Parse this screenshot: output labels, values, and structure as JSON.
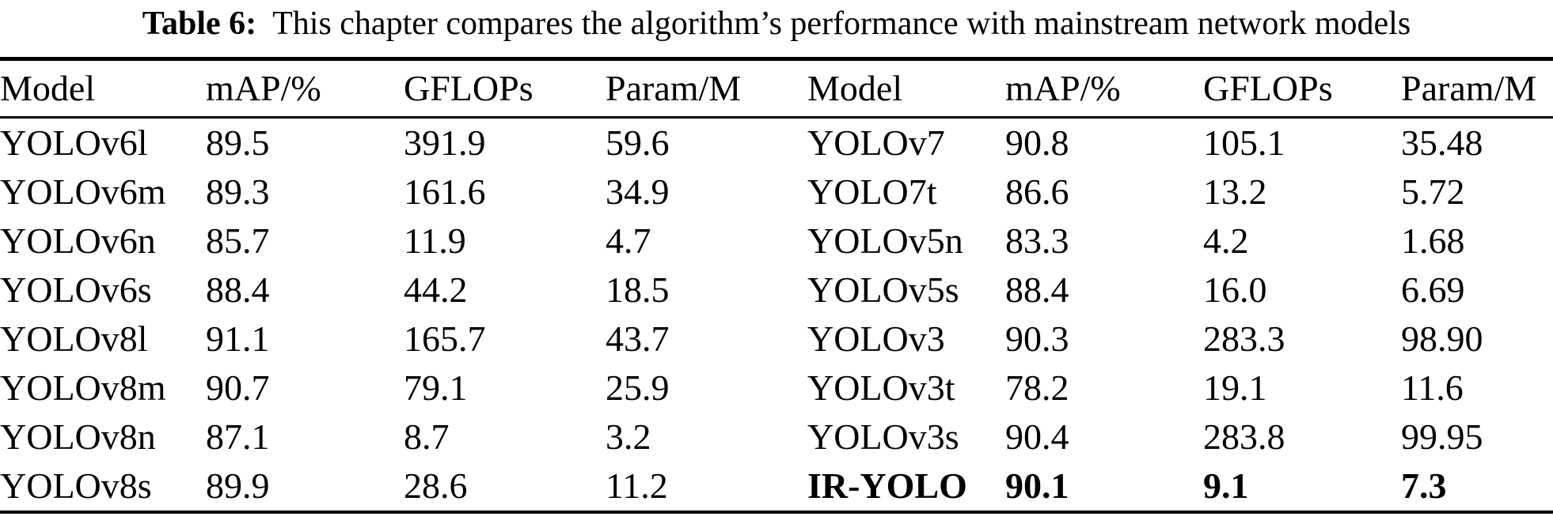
{
  "caption": {
    "label": "Table 6:",
    "text": "This chapter compares the algorithm’s performance with mainstream network models"
  },
  "table": {
    "headers": [
      "Model",
      "mAP/%",
      "GFLOPs",
      "Param/M",
      "Model",
      "mAP/%",
      "GFLOPs",
      "Param/M"
    ],
    "rows": [
      {
        "cells": [
          "YOLOv6l",
          "89.5",
          "391.9",
          "59.6",
          "YOLOv7",
          "90.8",
          "105.1",
          "35.48"
        ]
      },
      {
        "cells": [
          "YOLOv6m",
          "89.3",
          "161.6",
          "34.9",
          "YOLO7t",
          "86.6",
          "13.2",
          "5.72"
        ]
      },
      {
        "cells": [
          "YOLOv6n",
          "85.7",
          "11.9",
          "4.7",
          "YOLOv5n",
          "83.3",
          "4.2",
          "1.68"
        ]
      },
      {
        "cells": [
          "YOLOv6s",
          "88.4",
          "44.2",
          "18.5",
          "YOLOv5s",
          "88.4",
          "16.0",
          "6.69"
        ]
      },
      {
        "cells": [
          "YOLOv8l",
          "91.1",
          "165.7",
          "43.7",
          "YOLOv3",
          "90.3",
          "283.3",
          "98.90"
        ]
      },
      {
        "cells": [
          "YOLOv8m",
          "90.7",
          "79.1",
          "25.9",
          "YOLOv3t",
          "78.2",
          "19.1",
          "11.6"
        ]
      },
      {
        "cells": [
          "YOLOv8n",
          "87.1",
          "8.7",
          "3.2",
          "YOLOv3s",
          "90.4",
          "283.8",
          "99.95"
        ]
      },
      {
        "cells": [
          "YOLOv8s",
          "89.9",
          "28.6",
          "11.2",
          "IR-YOLO",
          "90.1",
          "9.1",
          "7.3"
        ]
      }
    ]
  }
}
